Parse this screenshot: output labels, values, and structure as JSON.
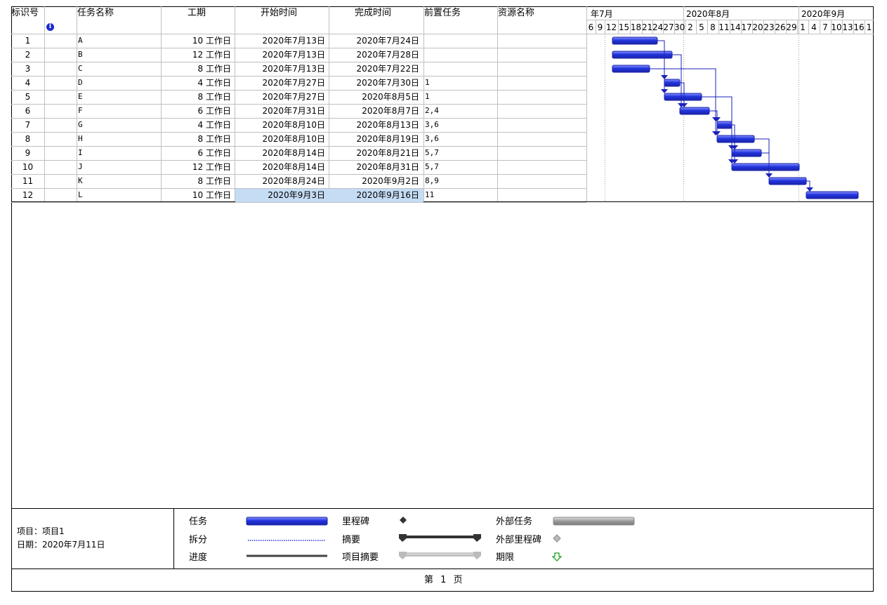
{
  "columns": {
    "id": "标识号",
    "info_icon": "info-icon",
    "name": "任务名称",
    "duration": "工期",
    "start": "开始时间",
    "finish": "完成时间",
    "pred": "前置任务",
    "resource": "资源名称"
  },
  "timescale": {
    "months": [
      "年7月",
      "2020年8月",
      "2020年9月"
    ],
    "days": [
      "6",
      "9",
      "12",
      "15",
      "18",
      "21",
      "24",
      "27",
      "30",
      "2",
      "5",
      "8",
      "11",
      "14",
      "17",
      "20",
      "23",
      "26",
      "29",
      "1",
      "4",
      "7",
      "10",
      "13",
      "16",
      "1"
    ]
  },
  "tasks": [
    {
      "id": "1",
      "name": "A",
      "duration": "10 工作日",
      "start": "2020年7月13日",
      "finish": "2020年7月24日",
      "pred": ""
    },
    {
      "id": "2",
      "name": "B",
      "duration": "12 工作日",
      "start": "2020年7月13日",
      "finish": "2020年7月28日",
      "pred": ""
    },
    {
      "id": "3",
      "name": "C",
      "duration": "8 工作日",
      "start": "2020年7月13日",
      "finish": "2020年7月22日",
      "pred": ""
    },
    {
      "id": "4",
      "name": "D",
      "duration": "4 工作日",
      "start": "2020年7月27日",
      "finish": "2020年7月30日",
      "pred": "1"
    },
    {
      "id": "5",
      "name": "E",
      "duration": "8 工作日",
      "start": "2020年7月27日",
      "finish": "2020年8月5日",
      "pred": "1"
    },
    {
      "id": "6",
      "name": "F",
      "duration": "6 工作日",
      "start": "2020年7月31日",
      "finish": "2020年8月7日",
      "pred": "2,4"
    },
    {
      "id": "7",
      "name": "G",
      "duration": "4 工作日",
      "start": "2020年8月10日",
      "finish": "2020年8月13日",
      "pred": "3,6"
    },
    {
      "id": "8",
      "name": "H",
      "duration": "8 工作日",
      "start": "2020年8月10日",
      "finish": "2020年8月19日",
      "pred": "3,6"
    },
    {
      "id": "9",
      "name": "I",
      "duration": "6 工作日",
      "start": "2020年8月14日",
      "finish": "2020年8月21日",
      "pred": "5,7"
    },
    {
      "id": "10",
      "name": "J",
      "duration": "12 工作日",
      "start": "2020年8月14日",
      "finish": "2020年8月31日",
      "pred": "5,7"
    },
    {
      "id": "11",
      "name": "K",
      "duration": "8 工作日",
      "start": "2020年8月24日",
      "finish": "2020年9月2日",
      "pred": "8,9"
    },
    {
      "id": "12",
      "name": "L",
      "duration": "10 工作日",
      "start": "2020年9月3日",
      "finish": "2020年9月16日",
      "pred": "11"
    }
  ],
  "footer": {
    "project_line": "项目：项目1",
    "date_line": "日期：2020年7月11日",
    "page_prefix": "第",
    "page_number": "1",
    "page_suffix": "页"
  },
  "legend": {
    "task": "任务",
    "split": "拆分",
    "progress": "进度",
    "milestone": "里程碑",
    "summary": "摘要",
    "project_summary": "项目摘要",
    "external_task": "外部任务",
    "external_milestone": "外部里程碑",
    "deadline": "期限"
  },
  "colors": {
    "bar": "#2233dd",
    "bar_light": "#6c7cff",
    "link": "#1a22bb",
    "grid": "#c0c0c0",
    "selection": "#c5dcf5"
  }
}
